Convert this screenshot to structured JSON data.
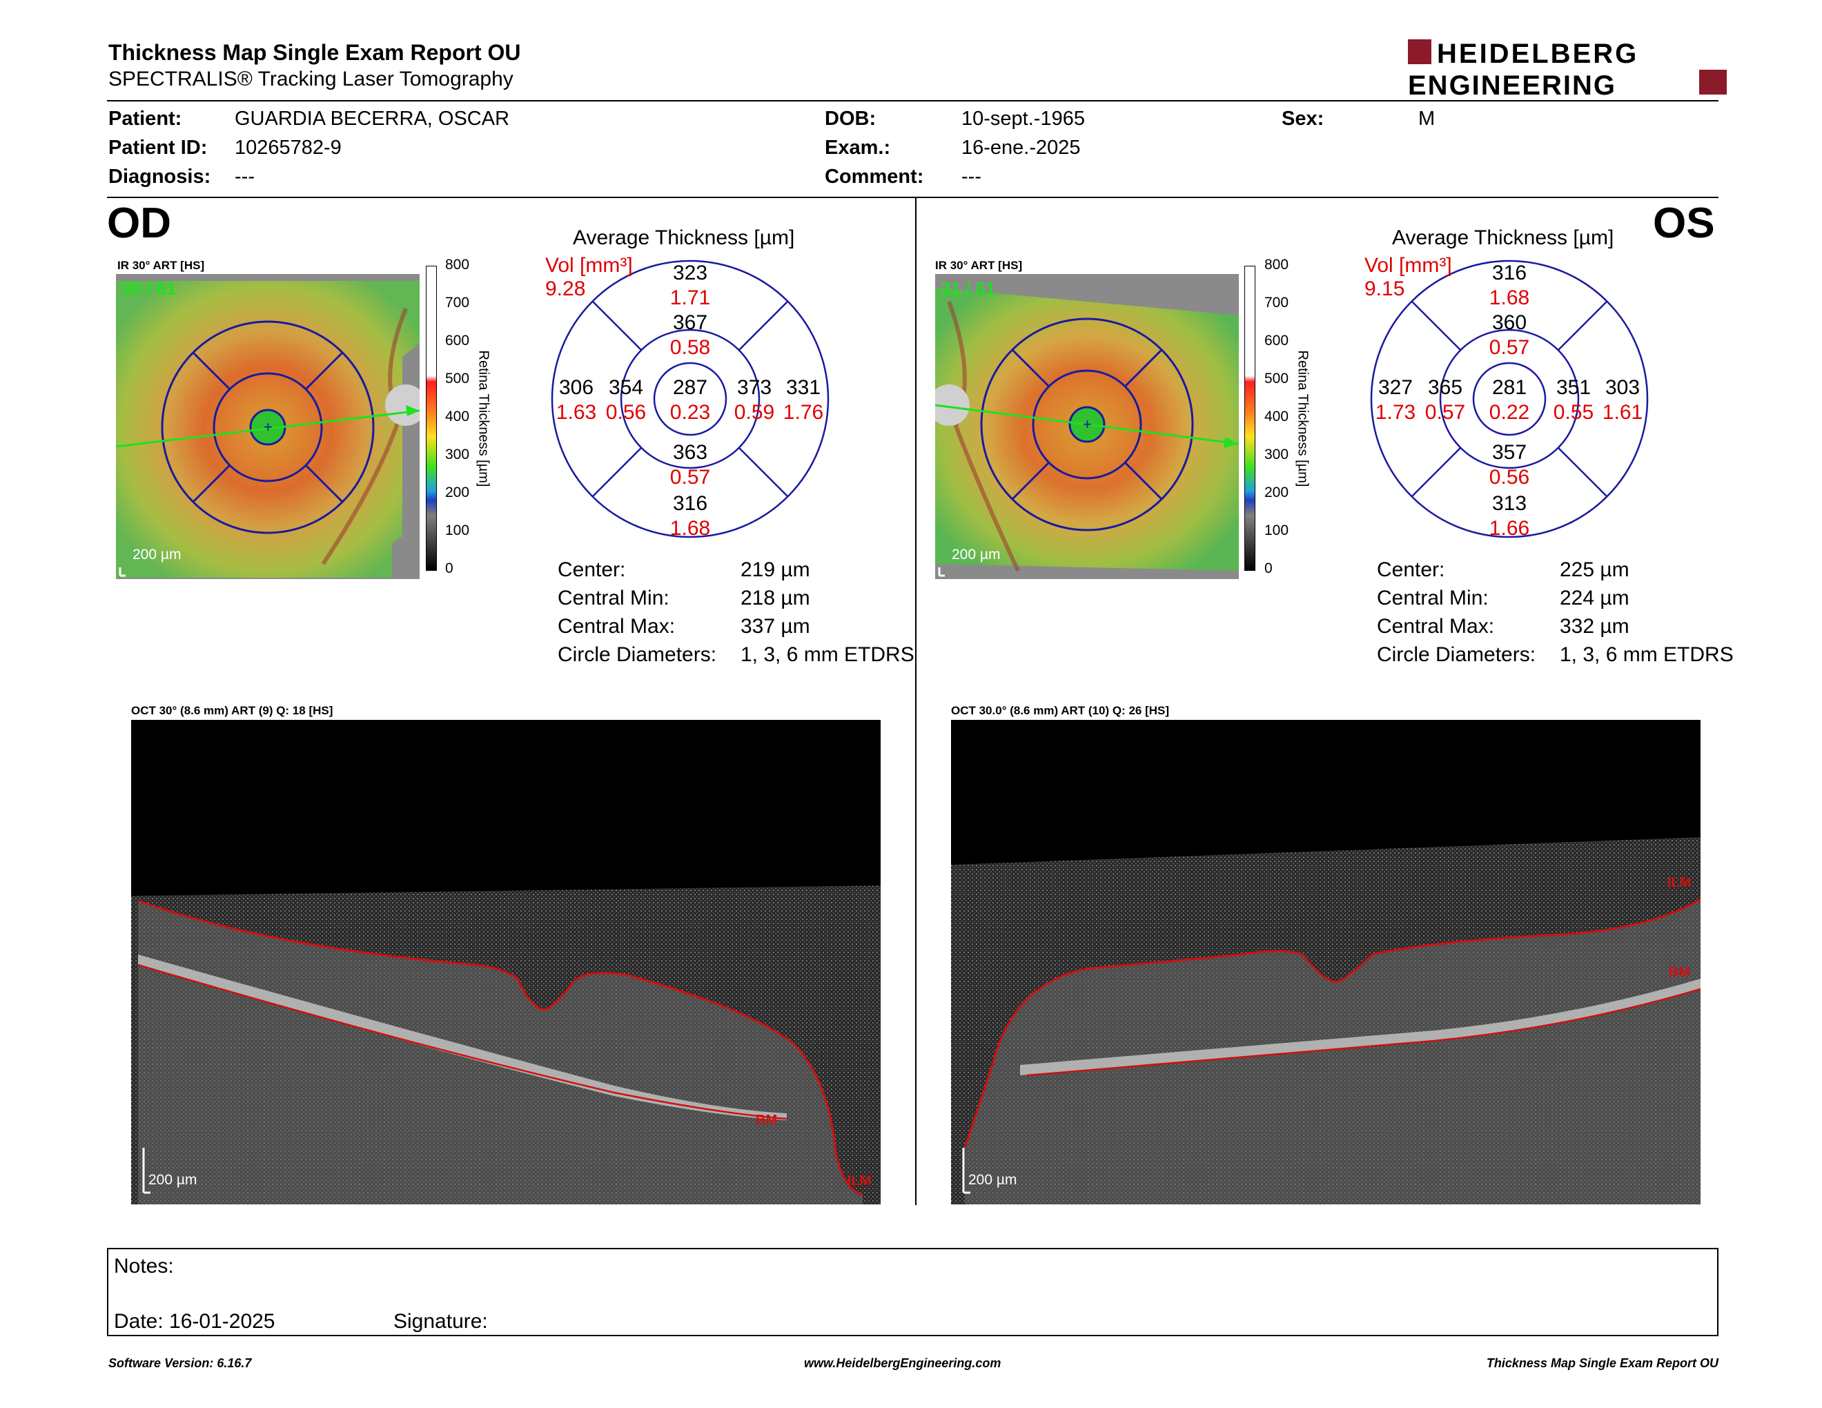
{
  "header": {
    "title": "Thickness Map Single Exam Report OU",
    "subtitle": "SPECTRALIS® Tracking Laser Tomography",
    "logo_line1": "HEIDELBERG",
    "logo_line2": "ENGINEERING",
    "brand_color": "#8b1a2b"
  },
  "patient": {
    "patient_label": "Patient:",
    "patient_value": "GUARDIA BECERRA, OSCAR",
    "id_label": "Patient ID:",
    "id_value": "10265782-9",
    "diagnosis_label": "Diagnosis:",
    "diagnosis_value": "---",
    "dob_label": "DOB:",
    "dob_value": "10-sept.-1965",
    "exam_label": "Exam.:",
    "exam_value": "16-ene.-2025",
    "comment_label": "Comment:",
    "comment_value": "---",
    "sex_label": "Sex:",
    "sex_value": "M"
  },
  "od": {
    "eye": "OD",
    "ir_label": "IR 30° ART [HS]",
    "frames": "30 / 61",
    "scale_bar": "200 µm",
    "scale_ticks": [
      "800",
      "700",
      "600",
      "500",
      "400",
      "300",
      "200",
      "100",
      "0"
    ],
    "scale_title": "Retina Thickness [µm]",
    "chart_title": "Average Thickness [µm]",
    "vol_label": "Vol [mm³]",
    "vol_total": "9.28",
    "sectors": {
      "outer_sup": {
        "t": "323",
        "v": "1.71"
      },
      "inner_sup": {
        "t": "367",
        "v": "0.58"
      },
      "center": {
        "t": "287",
        "v": "0.23"
      },
      "inner_inf": {
        "t": "363",
        "v": "0.57"
      },
      "outer_inf": {
        "t": "316",
        "v": "1.68"
      },
      "outer_left": {
        "t": "306",
        "v": "1.63"
      },
      "inner_left": {
        "t": "354",
        "v": "0.56"
      },
      "inner_right": {
        "t": "373",
        "v": "0.59"
      },
      "outer_right": {
        "t": "331",
        "v": "1.76"
      }
    },
    "stats": {
      "center_label": "Center:",
      "center": "219 µm",
      "min_label": "Central Min:",
      "min": "218 µm",
      "max_label": "Central Max:",
      "max": "337 µm",
      "diam_label": "Circle Diameters:",
      "diam": "1, 3, 6 mm ETDRS"
    },
    "oct_label": "OCT 30° (8.6 mm) ART (9) Q: 18 [HS]",
    "oct_scale": "200 µm",
    "ilm": "ILM",
    "bm": "BM"
  },
  "os": {
    "eye": "OS",
    "ir_label": "IR 30° ART [HS]",
    "frames": "31 / 61",
    "scale_bar": "200 µm",
    "scale_ticks": [
      "800",
      "700",
      "600",
      "500",
      "400",
      "300",
      "200",
      "100",
      "0"
    ],
    "scale_title": "Retina Thickness [µm]",
    "chart_title": "Average Thickness [µm]",
    "vol_label": "Vol [mm³]",
    "vol_total": "9.15",
    "sectors": {
      "outer_sup": {
        "t": "316",
        "v": "1.68"
      },
      "inner_sup": {
        "t": "360",
        "v": "0.57"
      },
      "center": {
        "t": "281",
        "v": "0.22"
      },
      "inner_inf": {
        "t": "357",
        "v": "0.56"
      },
      "outer_inf": {
        "t": "313",
        "v": "1.66"
      },
      "outer_left": {
        "t": "327",
        "v": "1.73"
      },
      "inner_left": {
        "t": "365",
        "v": "0.57"
      },
      "inner_right": {
        "t": "351",
        "v": "0.55"
      },
      "outer_right": {
        "t": "303",
        "v": "1.61"
      }
    },
    "stats": {
      "center_label": "Center:",
      "center": "225 µm",
      "min_label": "Central Min:",
      "min": "224 µm",
      "max_label": "Central Max:",
      "max": "332 µm",
      "diam_label": "Circle Diameters:",
      "diam": "1, 3, 6 mm ETDRS"
    },
    "oct_label": "OCT 30.0° (8.6 mm) ART (10) Q: 26 [HS]",
    "oct_scale": "200 µm",
    "ilm": "ILM",
    "bm": "BM"
  },
  "notes": {
    "notes_label": "Notes:",
    "date_label": "Date: 16-01-2025",
    "signature_label": "Signature:"
  },
  "footer": {
    "version": "Software Version: 6.16.7",
    "website": "www.HeidelbergEngineering.com",
    "report": "Thickness Map Single Exam Report OU"
  }
}
